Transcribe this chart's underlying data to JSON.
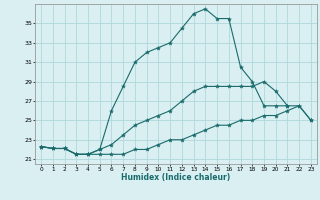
{
  "xlabel": "Humidex (Indice chaleur)",
  "background_color": "#d9eff2",
  "grid_color": "#b0d8dc",
  "line_color": "#1a6b6b",
  "ylim": [
    20.5,
    37.0
  ],
  "xlim": [
    -0.5,
    23.5
  ],
  "yticks": [
    21,
    23,
    25,
    27,
    29,
    31,
    33,
    35
  ],
  "xticks": [
    0,
    1,
    2,
    3,
    4,
    5,
    6,
    7,
    8,
    9,
    10,
    11,
    12,
    13,
    14,
    15,
    16,
    17,
    18,
    19,
    20,
    21,
    22,
    23
  ],
  "lines": [
    {
      "x": [
        0,
        1,
        2,
        3,
        4,
        5,
        6,
        7,
        8,
        9,
        10,
        11,
        12,
        13,
        14,
        15,
        16,
        17,
        18,
        19,
        20,
        21
      ],
      "y": [
        22.3,
        22.1,
        22.1,
        21.5,
        21.5,
        22.0,
        26.0,
        28.5,
        31.0,
        32.0,
        32.5,
        33.0,
        34.5,
        36.0,
        36.5,
        35.5,
        35.5,
        30.5,
        29.0,
        26.5,
        26.5,
        26.5
      ]
    },
    {
      "x": [
        0,
        1,
        2,
        3,
        4,
        5,
        6,
        7,
        8,
        9,
        10,
        11,
        12,
        13,
        14,
        15,
        16,
        17,
        18,
        19,
        20,
        21,
        22,
        23
      ],
      "y": [
        22.3,
        22.1,
        22.1,
        21.5,
        21.5,
        22.0,
        22.5,
        23.5,
        24.5,
        25.0,
        25.5,
        26.0,
        27.0,
        28.0,
        28.5,
        28.5,
        28.5,
        28.5,
        28.5,
        29.0,
        28.0,
        26.5,
        26.5,
        25.0
      ]
    },
    {
      "x": [
        0,
        1,
        2,
        3,
        4,
        5,
        6,
        7,
        8,
        9,
        10,
        11,
        12,
        13,
        14,
        15,
        16,
        17,
        18,
        19,
        20,
        21,
        22,
        23
      ],
      "y": [
        22.3,
        22.1,
        22.1,
        21.5,
        21.5,
        21.5,
        21.5,
        21.5,
        22.0,
        22.0,
        22.5,
        23.0,
        23.0,
        23.5,
        24.0,
        24.5,
        24.5,
        25.0,
        25.0,
        25.5,
        25.5,
        26.0,
        26.5,
        25.0
      ]
    }
  ]
}
